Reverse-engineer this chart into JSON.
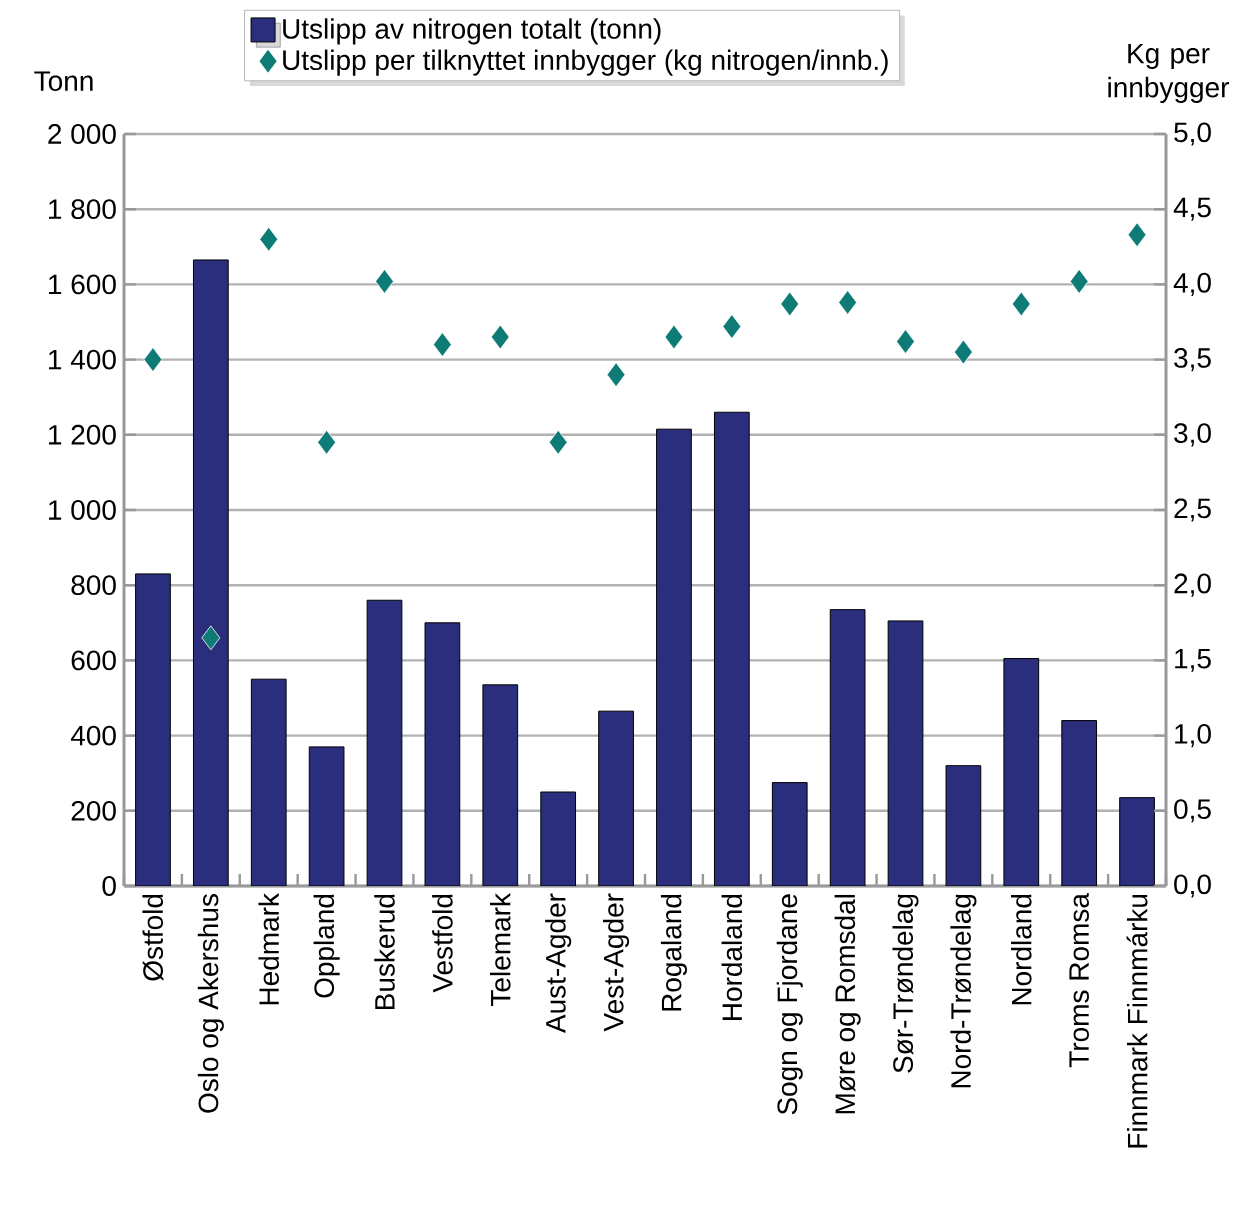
{
  "chart_data": {
    "type": "bar",
    "categories": [
      "Østfold",
      "Oslo og Akershus",
      "Hedmark",
      "Oppland",
      "Buskerud",
      "Vestfold",
      "Telemark",
      "Aust-Agder",
      "Vest-Agder",
      "Rogaland",
      "Hordaland",
      "Sogn og Fjordane",
      "Møre og Romsdal",
      "Sør-Trøndelag",
      "Nord-Trøndelag",
      "Nordland",
      "Troms Romsa",
      "Finnmark Finnmárku"
    ],
    "series": [
      {
        "name": "Utslipp av nitrogen totalt (tonn)",
        "color": "#2b2e7c",
        "values": [
          830,
          1665,
          550,
          370,
          760,
          700,
          535,
          250,
          465,
          1215,
          1260,
          275,
          735,
          705,
          320,
          605,
          440,
          235
        ]
      },
      {
        "name": "Utslipp per tilknyttet innbygger (kg nitrogen/innb.)",
        "type": "scatter",
        "axis": "y2",
        "marker": "diamond",
        "color": "#0e7b76",
        "values": [
          3.5,
          1.65,
          4.3,
          2.95,
          4.02,
          3.6,
          3.65,
          2.95,
          3.4,
          3.65,
          3.72,
          3.87,
          3.88,
          3.62,
          3.55,
          3.87,
          4.02,
          4.33
        ]
      }
    ],
    "ylabel": "Tonn",
    "y2label": "Kg per innbygger",
    "ylim": [
      0,
      2000
    ],
    "yticks": [
      0,
      200,
      400,
      600,
      800,
      {
        "value": 1000,
        "label": "1 000"
      },
      {
        "value": 1200,
        "label": "1 200"
      },
      {
        "value": 1400,
        "label": "1 400"
      },
      {
        "value": 1600,
        "label": "1 600"
      },
      {
        "value": 1800,
        "label": "1 800"
      },
      {
        "value": 2000,
        "label": "2 000"
      }
    ],
    "y2lim": [
      0,
      5
    ],
    "y2ticks": [
      {
        "value": 0,
        "label": "0,0"
      },
      {
        "value": 0.5,
        "label": "0,5"
      },
      {
        "value": 1,
        "label": "1,0"
      },
      {
        "value": 1.5,
        "label": "1,5"
      },
      {
        "value": 2,
        "label": "2,0"
      },
      {
        "value": 2.5,
        "label": "2,5"
      },
      {
        "value": 3,
        "label": "3,0"
      },
      {
        "value": 3.5,
        "label": "3,5"
      },
      {
        "value": 4,
        "label": "4,0"
      },
      {
        "value": 4.5,
        "label": "4,5"
      },
      {
        "value": 5,
        "label": "5,0"
      }
    ],
    "grid": "y",
    "legend": "top"
  }
}
